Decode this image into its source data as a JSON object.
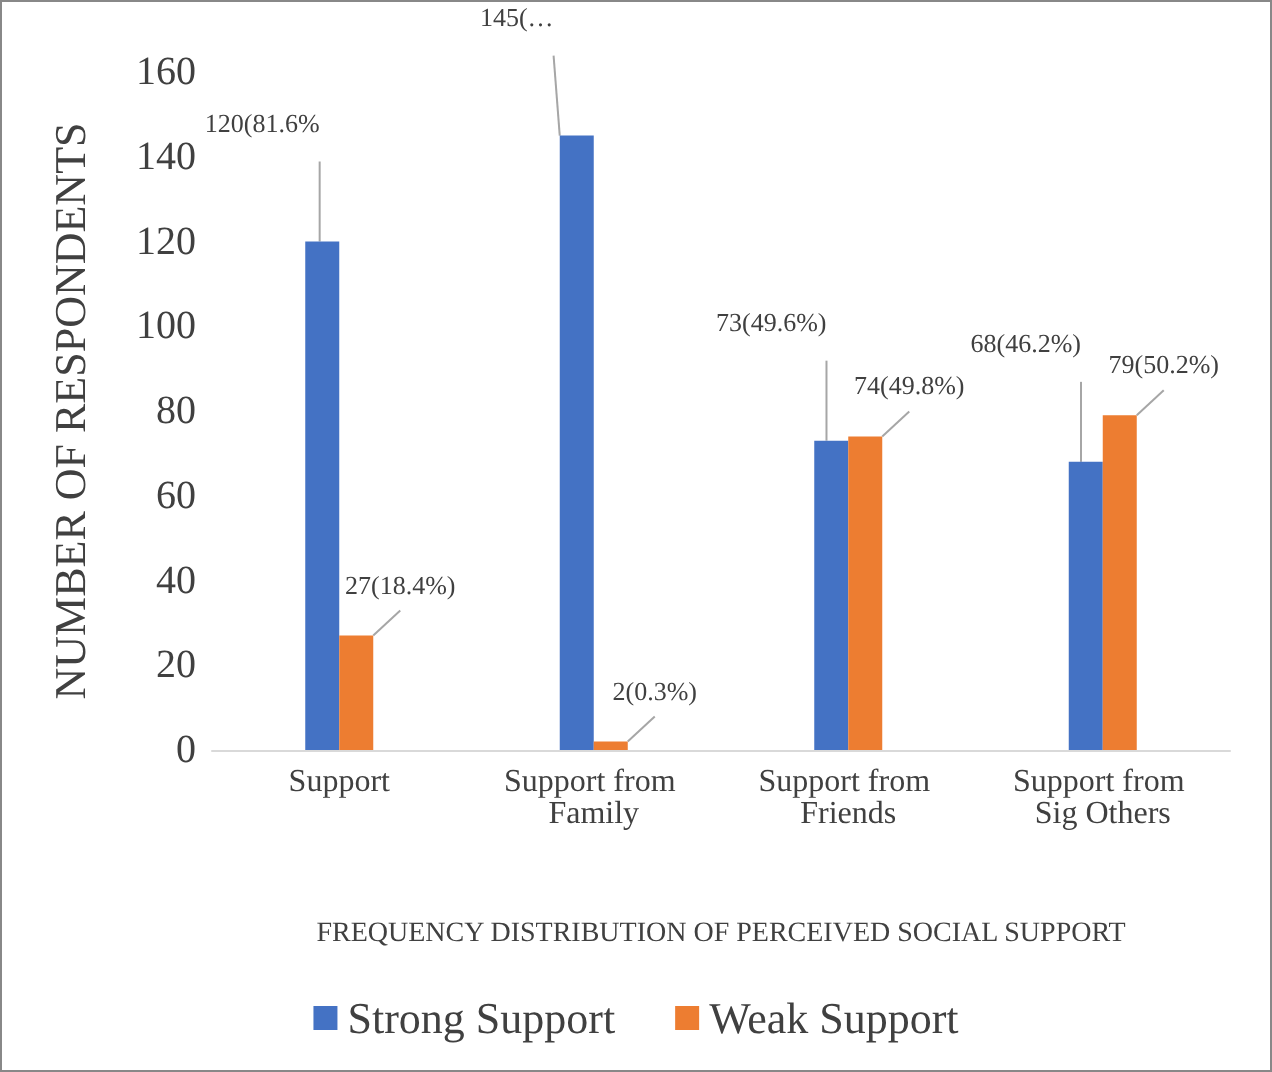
{
  "chart_data": {
    "type": "bar",
    "categories": [
      "Support",
      "Support from Family",
      "Support from Friends",
      "Support from Sig Others"
    ],
    "series": [
      {
        "name": "Strong Support",
        "color": "#4472c4",
        "values": [
          120,
          145,
          73,
          68
        ],
        "value_labels": [
          "120(81.6%",
          "145(…",
          "73(49.6%)",
          "68(46.2%)"
        ]
      },
      {
        "name": "Weak Support",
        "color": "#ed7d31",
        "values": [
          27,
          2,
          74,
          79
        ],
        "value_labels": [
          "27(18.4%)",
          "2(0.3%)",
          "74(49.8%)",
          "79(50.2%)"
        ]
      }
    ],
    "xlabel": "FREQUENCY DISTRIBUTION OF PERCEIVED SOCIAL SUPPORT",
    "ylabel": "NUMBER OF RESPONDENTS",
    "ylim": [
      0,
      160
    ],
    "yticks": [
      0,
      20,
      40,
      60,
      80,
      100,
      120,
      140,
      160
    ],
    "grid": false,
    "legend": "bottom"
  }
}
